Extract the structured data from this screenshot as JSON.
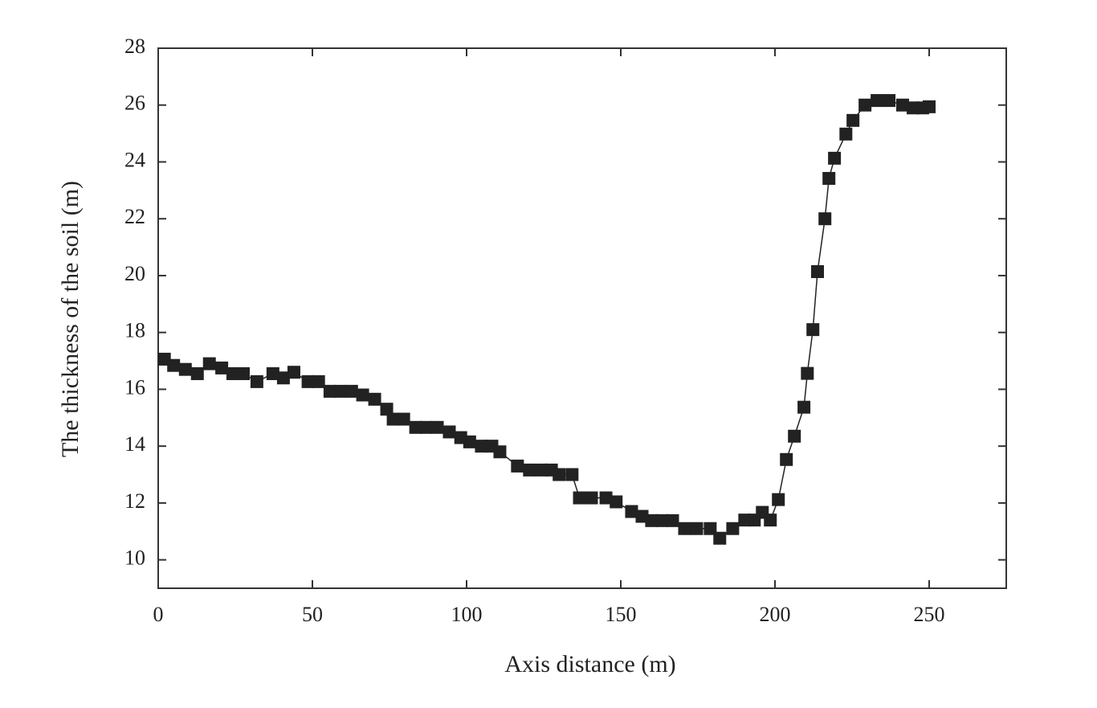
{
  "chart_data": {
    "type": "line",
    "x_label": "Axis distance (m)",
    "y_label": "The thickness of the soil (m)",
    "xlim": [
      0,
      275
    ],
    "ylim": [
      9,
      28
    ],
    "xticks": [
      0,
      50,
      100,
      150,
      200,
      250
    ],
    "yticks": [
      10,
      12,
      14,
      16,
      18,
      20,
      22,
      24,
      26,
      28
    ],
    "grid": false,
    "series": [
      {
        "color": "#222222",
        "marker": "square",
        "x": [
          2,
          5,
          8.8,
          12.7,
          16.6,
          20.6,
          24.2,
          27.6,
          32,
          37.2,
          40.6,
          44,
          48.6,
          52,
          55.7,
          59,
          62.7,
          66.3,
          70.2,
          74.1,
          76.2,
          79.6,
          83.5,
          86.9,
          90.5,
          94.4,
          98.1,
          101,
          104.8,
          108.2,
          110.8,
          116.5,
          120.4,
          124.3,
          127.5,
          130,
          134.2,
          136.6,
          140.5,
          145.2,
          148.5,
          153.5,
          156.9,
          160,
          163.4,
          166.8,
          170.7,
          174.6,
          179,
          182.1,
          186.3,
          190.2,
          193.3,
          195.9,
          198.5,
          201.1,
          203.7,
          206.3,
          209.4,
          210.5,
          212.3,
          213.8,
          216.2,
          217.5,
          219.3,
          223,
          225.3,
          229.2,
          233.1,
          237,
          241.4,
          244.8,
          247.9,
          250
        ],
        "values": [
          17.06,
          16.84,
          16.7,
          16.55,
          16.9,
          16.75,
          16.55,
          16.55,
          16.27,
          16.55,
          16.4,
          16.6,
          16.27,
          16.27,
          15.93,
          15.93,
          15.93,
          15.8,
          15.65,
          15.3,
          14.95,
          14.95,
          14.66,
          14.66,
          14.66,
          14.5,
          14.3,
          14.15,
          14.0,
          14.0,
          13.8,
          13.3,
          13.16,
          13.16,
          13.16,
          13.0,
          13.0,
          12.18,
          12.18,
          12.18,
          12.04,
          11.7,
          11.53,
          11.38,
          11.38,
          11.38,
          11.1,
          11.1,
          11.1,
          10.76,
          11.1,
          11.4,
          11.4,
          11.67,
          11.4,
          12.12,
          13.53,
          14.35,
          15.37,
          16.56,
          18.1,
          20.14,
          22.0,
          23.42,
          24.13,
          24.98,
          25.46,
          26.0,
          26.16,
          26.16,
          26.0,
          25.9,
          25.9,
          25.94
        ]
      }
    ]
  }
}
